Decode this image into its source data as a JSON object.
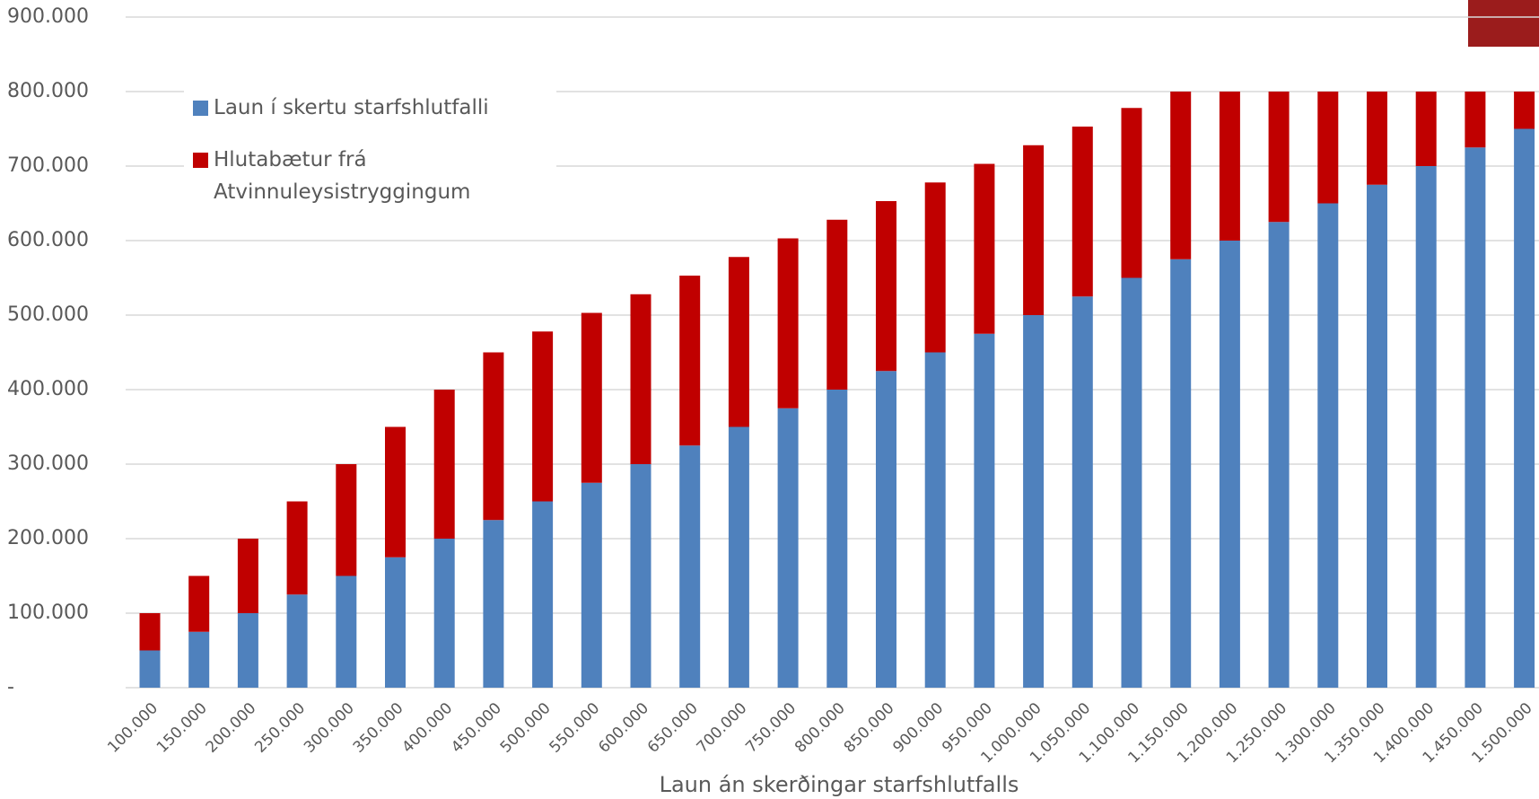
{
  "chart_data": {
    "type": "stacked_bar",
    "x_label": "Laun án skerðingar starfshlutfalls",
    "categories": [
      "100.000",
      "150.000",
      "200.000",
      "250.000",
      "300.000",
      "350.000",
      "400.000",
      "450.000",
      "500.000",
      "550.000",
      "600.000",
      "650.000",
      "700.000",
      "750.000",
      "800.000",
      "850.000",
      "900.000",
      "950.000",
      "1.000.000",
      "1.050.000",
      "1.100.000",
      "1.150.000",
      "1.200.000",
      "1.250.000",
      "1.300.000",
      "1.350.000",
      "1.400.000",
      "1.450.000",
      "1.500.000"
    ],
    "series": [
      {
        "name": "Laun í skertu starfshlutfalli",
        "color": "#4f81bd",
        "values": [
          50000,
          75000,
          100000,
          125000,
          150000,
          175000,
          200000,
          225000,
          250000,
          275000,
          300000,
          325000,
          350000,
          375000,
          400000,
          425000,
          450000,
          475000,
          500000,
          525000,
          550000,
          575000,
          600000,
          625000,
          650000,
          675000,
          700000,
          725000,
          750000
        ]
      },
      {
        "name": "Hlutabætur frá Atvinnuleysistryggingum",
        "color": "#c00000",
        "values": [
          50000,
          75000,
          100000,
          125000,
          150000,
          175000,
          200000,
          225000,
          228000,
          228000,
          228000,
          228000,
          228000,
          228000,
          228000,
          228000,
          228000,
          228000,
          228000,
          228000,
          228000,
          225000,
          200000,
          175000,
          150000,
          125000,
          100000,
          75000,
          50000
        ]
      }
    ],
    "ylim": [
      0,
      900000
    ],
    "yticks": [
      {
        "value": 0,
        "label": "-"
      },
      {
        "value": 100000,
        "label": "100.000"
      },
      {
        "value": 200000,
        "label": "200.000"
      },
      {
        "value": 300000,
        "label": "300.000"
      },
      {
        "value": 400000,
        "label": "400.000"
      },
      {
        "value": 500000,
        "label": "500.000"
      },
      {
        "value": 600000,
        "label": "600.000"
      },
      {
        "value": 700000,
        "label": "700.000"
      },
      {
        "value": 800000,
        "label": "800.000"
      },
      {
        "value": 900000,
        "label": "900.000"
      }
    ],
    "grid": true
  }
}
